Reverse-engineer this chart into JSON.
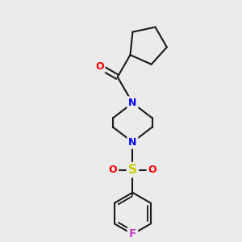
{
  "bg_color": "#ebebeb",
  "line_color": "#1a1a1a",
  "N_color": "#0000ff",
  "O_color": "#ff0000",
  "S_color": "#cccc00",
  "F_color": "#cc44cc",
  "line_width": 1.5,
  "figsize": [
    3.0,
    3.0
  ],
  "dpi": 100,
  "xlim": [
    0,
    10
  ],
  "ylim": [
    0,
    10
  ]
}
